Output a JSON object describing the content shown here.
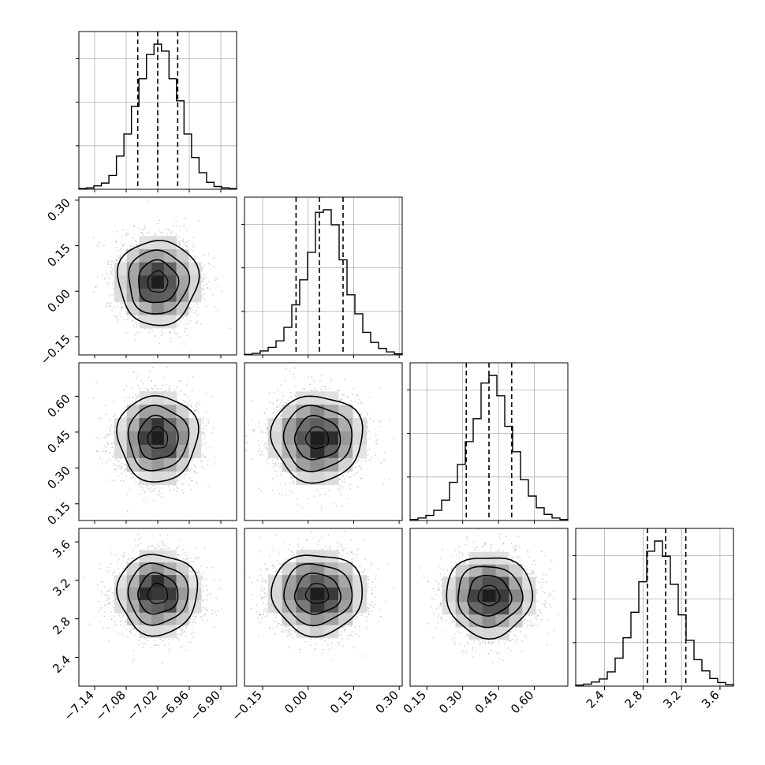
{
  "chart_data": {
    "type": "corner",
    "grid": true,
    "parameters": [
      {
        "range": [
          -7.17,
          -6.87
        ],
        "ticks": [
          -7.14,
          -7.08,
          -7.02,
          -6.96,
          -6.9
        ],
        "tick_labels": [
          "−7.14",
          "−7.08",
          "−7.02",
          "−6.96",
          "−6.90"
        ],
        "median": -7.02,
        "quantiles": [
          -7.058,
          -7.02,
          -6.982
        ],
        "hist": [
          1,
          2,
          5,
          9,
          20,
          48,
          80,
          120,
          160,
          195,
          210,
          200,
          160,
          128,
          80,
          46,
          24,
          10,
          4,
          2,
          1
        ],
        "hist_max": 210
      },
      {
        "range": [
          -0.21,
          0.31
        ],
        "ticks": [
          -0.15,
          0.0,
          0.15,
          0.3
        ],
        "tick_labels": [
          "−0.15",
          "0.00",
          "0.15",
          "0.30"
        ],
        "median": 0.037,
        "quantiles": [
          -0.04,
          0.037,
          0.115
        ],
        "hist": [
          1,
          3,
          8,
          15,
          28,
          55,
          100,
          150,
          205,
          285,
          290,
          260,
          190,
          120,
          82,
          45,
          25,
          13,
          6,
          2
        ],
        "hist_max": 290
      },
      {
        "range": [
          0.08,
          0.74
        ],
        "ticks": [
          0.15,
          0.3,
          0.45,
          0.6
        ],
        "tick_labels": [
          "0.15",
          "0.30",
          "0.45",
          "0.60"
        ],
        "median": 0.41,
        "quantiles": [
          0.315,
          0.41,
          0.505
        ],
        "hist": [
          2,
          5,
          10,
          20,
          40,
          75,
          110,
          155,
          200,
          270,
          285,
          245,
          185,
          135,
          80,
          48,
          25,
          12,
          5,
          2
        ],
        "hist_max": 285
      },
      {
        "range": [
          2.1,
          3.74
        ],
        "ticks": [
          2.4,
          2.8,
          3.2,
          3.6
        ],
        "tick_labels": [
          "2.4",
          "2.8",
          "3.2",
          "3.6"
        ],
        "median": 3.035,
        "quantiles": [
          2.845,
          3.035,
          3.245
        ],
        "hist": [
          2,
          4,
          8,
          14,
          28,
          55,
          95,
          145,
          205,
          265,
          285,
          255,
          200,
          140,
          90,
          52,
          30,
          15,
          7,
          3
        ],
        "hist_max": 285
      }
    ],
    "pairs": [
      {
        "row": 1,
        "col": 0,
        "center": [
          -7.02,
          0.03
        ],
        "sd": [
          0.038,
          0.07
        ]
      },
      {
        "row": 2,
        "col": 0,
        "center": [
          -7.02,
          0.425
        ],
        "sd": [
          0.038,
          0.09
        ]
      },
      {
        "row": 2,
        "col": 1,
        "center": [
          0.03,
          0.425
        ],
        "sd": [
          0.075,
          0.09
        ]
      },
      {
        "row": 3,
        "col": 0,
        "center": [
          -7.02,
          3.06
        ],
        "sd": [
          0.038,
          0.21
        ]
      },
      {
        "row": 3,
        "col": 1,
        "center": [
          0.03,
          3.06
        ],
        "sd": [
          0.075,
          0.21
        ]
      },
      {
        "row": 3,
        "col": 2,
        "center": [
          0.41,
          3.04
        ],
        "sd": [
          0.09,
          0.21
        ]
      }
    ]
  }
}
